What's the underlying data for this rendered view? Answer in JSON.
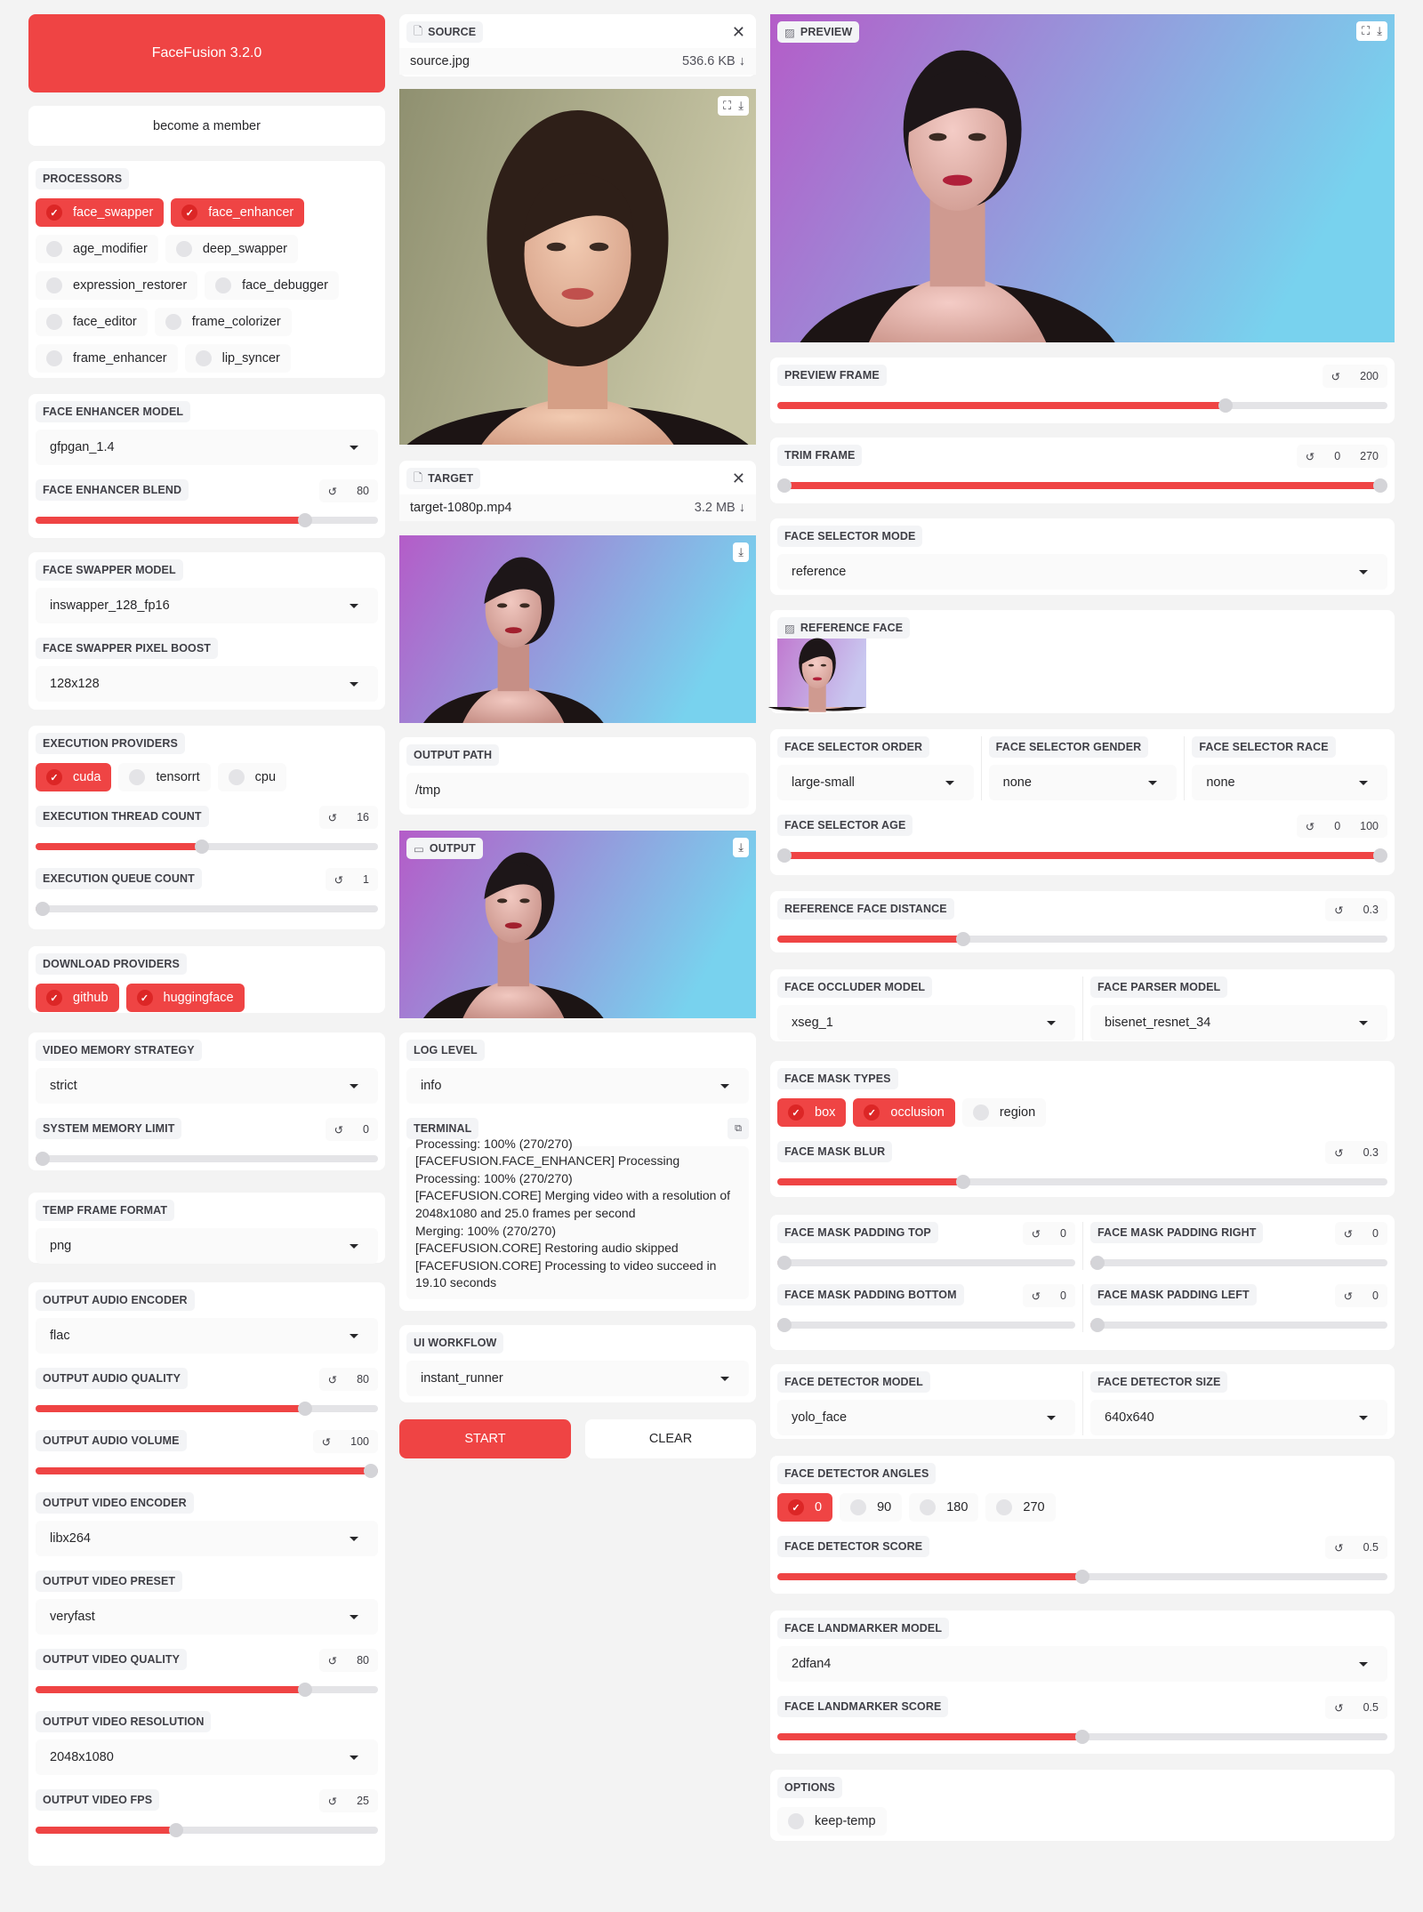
{
  "colors": {
    "accent": "#ef4444",
    "accent_dark": "#dc2626",
    "background": "#f3f3f3",
    "track": "#e4e4e7"
  },
  "left": {
    "header": {
      "title": "FaceFusion 3.2.0"
    },
    "member": {
      "label": "become a member"
    },
    "processors": {
      "fields": [
        {
          "type": "checks",
          "label": "PROCESSORS",
          "items": [
            {
              "label": "face_swapper",
              "checked": true
            },
            {
              "label": "face_enhancer",
              "checked": true
            },
            {
              "label": "age_modifier",
              "checked": false
            },
            {
              "label": "deep_swapper",
              "checked": false
            },
            {
              "label": "expression_restorer",
              "checked": false
            },
            {
              "label": "face_debugger",
              "checked": false
            },
            {
              "label": "face_editor",
              "checked": false
            },
            {
              "label": "frame_colorizer",
              "checked": false
            },
            {
              "label": "frame_enhancer",
              "checked": false
            },
            {
              "label": "lip_syncer",
              "checked": false
            }
          ]
        }
      ]
    },
    "face_enhancer": {
      "fields": [
        {
          "type": "dropdown",
          "label": "FACE ENHANCER MODEL",
          "value": "gfpgan_1.4"
        },
        {
          "type": "slider",
          "label": "FACE ENHANCER BLEND",
          "value": 80,
          "min": 0,
          "max": 100
        }
      ]
    },
    "face_swapper": {
      "fields": [
        {
          "type": "dropdown",
          "label": "FACE SWAPPER MODEL",
          "value": "inswapper_128_fp16"
        },
        {
          "type": "dropdown",
          "label": "FACE SWAPPER PIXEL BOOST",
          "value": "128x128"
        }
      ]
    },
    "execution": {
      "fields": [
        {
          "type": "checks",
          "label": "EXECUTION PROVIDERS",
          "items": [
            {
              "label": "cuda",
              "checked": true
            },
            {
              "label": "tensorrt",
              "checked": false
            },
            {
              "label": "cpu",
              "checked": false
            }
          ]
        },
        {
          "type": "slider",
          "label": "EXECUTION THREAD COUNT",
          "value": 16,
          "min": 1,
          "max": 32
        },
        {
          "type": "slider",
          "label": "EXECUTION QUEUE COUNT",
          "value": 1,
          "min": 1,
          "max": 4
        }
      ]
    },
    "download": {
      "fields": [
        {
          "type": "checks",
          "label": "DOWNLOAD PROVIDERS",
          "items": [
            {
              "label": "github",
              "checked": true
            },
            {
              "label": "huggingface",
              "checked": true
            }
          ]
        }
      ]
    },
    "memory": {
      "fields": [
        {
          "type": "dropdown",
          "label": "VIDEO MEMORY STRATEGY",
          "value": "strict"
        },
        {
          "type": "slider",
          "label": "SYSTEM MEMORY LIMIT",
          "value": 0,
          "min": 0,
          "max": 128
        }
      ]
    },
    "temp": {
      "fields": [
        {
          "type": "dropdown",
          "label": "TEMP FRAME FORMAT",
          "value": "png"
        }
      ]
    },
    "output": {
      "fields": [
        {
          "type": "dropdown",
          "label": "OUTPUT AUDIO ENCODER",
          "value": "flac"
        },
        {
          "type": "slider",
          "label": "OUTPUT AUDIO QUALITY",
          "value": 80,
          "min": 0,
          "max": 100
        },
        {
          "type": "slider",
          "label": "OUTPUT AUDIO VOLUME",
          "value": 100,
          "min": 0,
          "max": 100
        },
        {
          "type": "dropdown",
          "label": "OUTPUT VIDEO ENCODER",
          "value": "libx264"
        },
        {
          "type": "dropdown",
          "label": "OUTPUT VIDEO PRESET",
          "value": "veryfast"
        },
        {
          "type": "slider",
          "label": "OUTPUT VIDEO QUALITY",
          "value": 80,
          "min": 0,
          "max": 100
        },
        {
          "type": "dropdown",
          "label": "OUTPUT VIDEO RESOLUTION",
          "value": "2048x1080"
        },
        {
          "type": "slider",
          "label": "OUTPUT VIDEO FPS",
          "value": 25,
          "min": 1,
          "max": 60
        }
      ]
    }
  },
  "mid": {
    "source": {
      "label": "SOURCE",
      "file_name": "source.jpg",
      "file_size": "536.6 KB"
    },
    "source_image": {},
    "target": {
      "label": "TARGET",
      "file_name": "target-1080p.mp4",
      "file_size": "3.2 MB"
    },
    "target_image": {},
    "output_path": {
      "fields": [
        {
          "type": "text",
          "label": "OUTPUT PATH",
          "value": "/tmp"
        }
      ]
    },
    "output_image": {
      "label": "OUTPUT"
    },
    "log": {
      "fields": [
        {
          "type": "dropdown",
          "label": "LOG LEVEL",
          "value": "info"
        },
        {
          "type": "terminal",
          "label": "TERMINAL",
          "lines": [
            "Processing: 100% (270/270)",
            "[FACEFUSION.FACE_ENHANCER] Processing",
            "Processing: 100% (270/270)",
            "[FACEFUSION.CORE] Merging video with a resolution of 2048x1080 and 25.0 frames per second",
            "Merging: 100% (270/270)",
            "[FACEFUSION.CORE] Restoring audio skipped",
            "[FACEFUSION.CORE] Processing to video succeed in 19.10 seconds"
          ]
        }
      ]
    },
    "workflow": {
      "fields": [
        {
          "type": "dropdown",
          "label": "UI WORKFLOW",
          "value": "instant_runner"
        }
      ]
    },
    "buttons": {
      "start": "START",
      "clear": "CLEAR"
    }
  },
  "right": {
    "preview": {
      "label": "PREVIEW"
    },
    "preview_frame": {
      "fields": [
        {
          "type": "slider",
          "label": "PREVIEW FRAME",
          "value": 200,
          "min": 0,
          "max": 270
        }
      ]
    },
    "trim": {
      "fields": [
        {
          "type": "range",
          "label": "TRIM FRAME",
          "values": [
            0,
            270
          ],
          "min": 0,
          "max": 270
        }
      ]
    },
    "selector_mode": {
      "fields": [
        {
          "type": "dropdown",
          "label": "FACE SELECTOR MODE",
          "value": "reference"
        }
      ]
    },
    "reference": {
      "label": "REFERENCE FACE"
    },
    "selector": {
      "fields": [
        {
          "type": "row",
          "cols": [
            {
              "type": "dropdown",
              "label": "FACE SELECTOR ORDER",
              "value": "large-small"
            },
            {
              "type": "dropdown",
              "label": "FACE SELECTOR GENDER",
              "value": "none"
            },
            {
              "type": "dropdown",
              "label": "FACE SELECTOR RACE",
              "value": "none"
            }
          ]
        },
        {
          "type": "range",
          "label": "FACE SELECTOR AGE",
          "values": [
            0,
            100
          ],
          "min": 0,
          "max": 100
        }
      ]
    },
    "ref_distance": {
      "fields": [
        {
          "type": "slider",
          "label": "REFERENCE FACE DISTANCE",
          "value": 0.3,
          "min": 0,
          "max": 1
        }
      ]
    },
    "occluder": {
      "fields": [
        {
          "type": "row",
          "cols": [
            {
              "type": "dropdown",
              "label": "FACE OCCLUDER MODEL",
              "value": "xseg_1"
            },
            {
              "type": "dropdown",
              "label": "FACE PARSER MODEL",
              "value": "bisenet_resnet_34"
            }
          ]
        }
      ]
    },
    "mask": {
      "fields": [
        {
          "type": "checks",
          "label": "FACE MASK TYPES",
          "items": [
            {
              "label": "box",
              "checked": true
            },
            {
              "label": "occlusion",
              "checked": true
            },
            {
              "label": "region",
              "checked": false
            }
          ]
        },
        {
          "type": "slider",
          "label": "FACE MASK BLUR",
          "value": 0.3,
          "min": 0,
          "max": 1
        }
      ]
    },
    "padding": {
      "fields": [
        {
          "type": "row",
          "cols": [
            {
              "type": "slider",
              "label": "FACE MASK PADDING TOP",
              "value": 0,
              "min": 0,
              "max": 100
            },
            {
              "type": "slider",
              "label": "FACE MASK PADDING RIGHT",
              "value": 0,
              "min": 0,
              "max": 100
            }
          ]
        },
        {
          "type": "row",
          "cols": [
            {
              "type": "slider",
              "label": "FACE MASK PADDING BOTTOM",
              "value": 0,
              "min": 0,
              "max": 100
            },
            {
              "type": "slider",
              "label": "FACE MASK PADDING LEFT",
              "value": 0,
              "min": 0,
              "max": 100
            }
          ]
        }
      ]
    },
    "detector": {
      "fields": [
        {
          "type": "row",
          "cols": [
            {
              "type": "dropdown",
              "label": "FACE DETECTOR MODEL",
              "value": "yolo_face"
            },
            {
              "type": "dropdown",
              "label": "FACE DETECTOR SIZE",
              "value": "640x640"
            }
          ]
        }
      ]
    },
    "angles": {
      "fields": [
        {
          "type": "checks",
          "label": "FACE DETECTOR ANGLES",
          "items": [
            {
              "label": "0",
              "checked": true
            },
            {
              "label": "90",
              "checked": false
            },
            {
              "label": "180",
              "checked": false
            },
            {
              "label": "270",
              "checked": false
            }
          ]
        },
        {
          "type": "slider",
          "label": "FACE DETECTOR SCORE",
          "value": 0.5,
          "min": 0,
          "max": 1
        }
      ]
    },
    "landmarker": {
      "fields": [
        {
          "type": "dropdown",
          "label": "FACE LANDMARKER MODEL",
          "value": "2dfan4"
        },
        {
          "type": "slider",
          "label": "FACE LANDMARKER SCORE",
          "value": 0.5,
          "min": 0,
          "max": 1
        }
      ]
    },
    "options": {
      "fields": [
        {
          "type": "checks",
          "label": "OPTIONS",
          "items": [
            {
              "label": "keep-temp",
              "checked": false
            }
          ]
        }
      ]
    }
  }
}
